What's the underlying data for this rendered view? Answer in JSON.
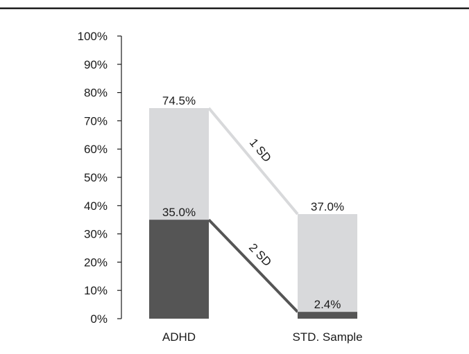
{
  "chart_data": {
    "type": "bar",
    "categories": [
      "ADHD",
      "STD. Sample"
    ],
    "series": [
      {
        "values": [
          74.5,
          37.0
        ],
        "labels": [
          "74.5%",
          "37.0%"
        ],
        "color": "#d8d9db"
      },
      {
        "values": [
          35.0,
          2.4
        ],
        "labels": [
          "35.0%",
          "2.4%"
        ],
        "color": "#555555"
      }
    ],
    "connectors": [
      {
        "label": "1 SD",
        "from": 74.5,
        "to": 37.0,
        "color": "#d8d9db"
      },
      {
        "label": "2 SD",
        "from": 35.0,
        "to": 2.4,
        "color": "#555555"
      }
    ],
    "y_ticks": [
      "0%",
      "10%",
      "20%",
      "30%",
      "40%",
      "50%",
      "60%",
      "70%",
      "80%",
      "90%",
      "100%"
    ],
    "ylim": [
      0,
      100
    ],
    "grid": false,
    "legend": "none",
    "title": "",
    "xlabel": "",
    "ylabel": ""
  },
  "colors": {
    "rule": "#1a1a1a",
    "axis": "#1a1a1a"
  }
}
